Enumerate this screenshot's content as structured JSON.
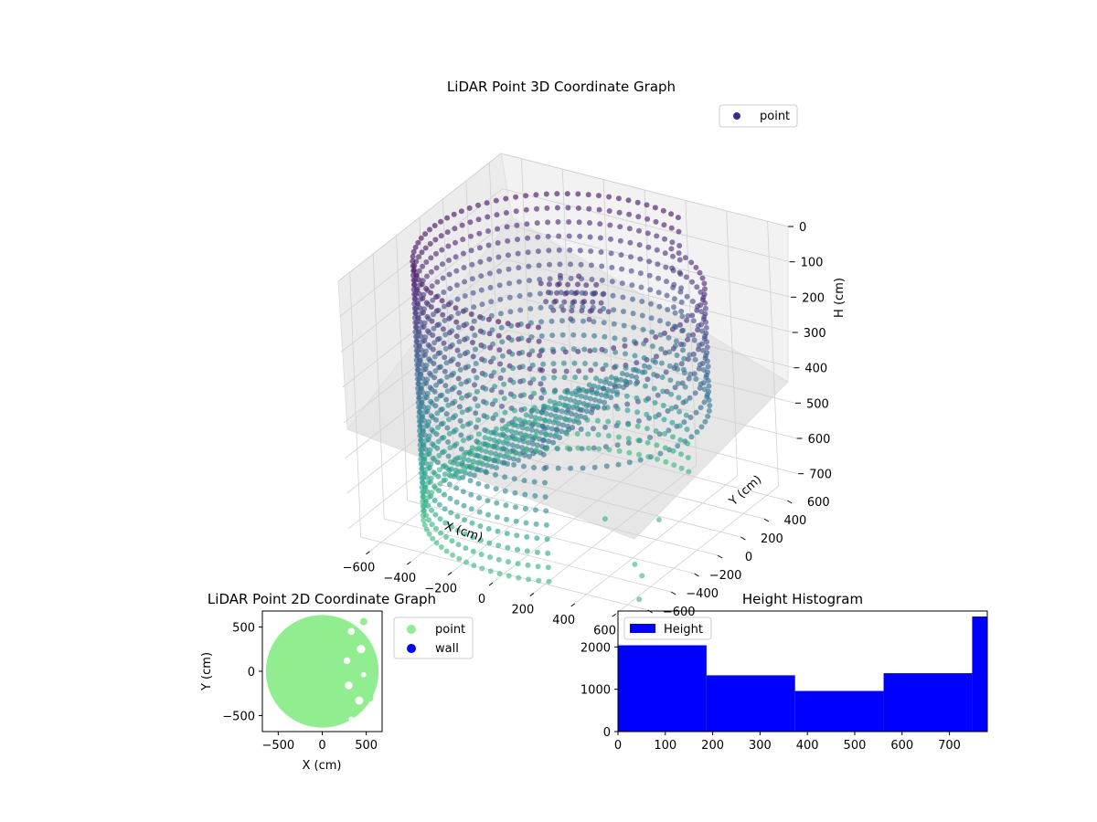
{
  "chart_data": [
    {
      "type": "scatter",
      "title": "LiDAR Point 3D Coordinate Graph",
      "xlabel": "X (cm)",
      "ylabel": "Y (cm)",
      "zlabel": "H (cm)",
      "xlim": [
        -700,
        700
      ],
      "ylim": [
        -700,
        700
      ],
      "zlim": [
        0,
        750
      ],
      "z_inverted": true,
      "x_ticks": [
        "−600",
        "−400",
        "−200",
        "0",
        "200",
        "400",
        "600"
      ],
      "y_ticks": [
        "−600",
        "−400",
        "−200",
        "0",
        "200",
        "400",
        "600"
      ],
      "z_ticks": [
        "0",
        "100",
        "200",
        "300",
        "400",
        "500",
        "600",
        "700"
      ],
      "legend": [
        {
          "label": "point",
          "color": "#3b2f7f"
        }
      ],
      "legend_position": "top-right",
      "colormap": "viridis",
      "grid": true,
      "radius": 640,
      "series": [
        {
          "name": "point"
        }
      ]
    },
    {
      "type": "scatter",
      "title": "LiDAR Point 2D Coordinate Graph",
      "xlabel": "X (cm)",
      "ylabel": "Y (cm)",
      "xlim": [
        -680,
        680
      ],
      "ylim": [
        -680,
        680
      ],
      "x_ticks": [
        "−500",
        "0",
        "500"
      ],
      "y_ticks": [
        "−500",
        "0",
        "500"
      ],
      "legend": [
        {
          "label": "point",
          "color": "#90ee90"
        },
        {
          "label": "wall",
          "color": "#0000ff"
        }
      ],
      "legend_position": "outside-right",
      "series": [
        {
          "name": "point",
          "color": "#90ee90"
        },
        {
          "name": "wall",
          "color": "#0000ff"
        }
      ]
    },
    {
      "type": "bar",
      "title": "Height Histogram",
      "xlim": [
        0,
        780
      ],
      "ylim": [
        0,
        2850
      ],
      "x_ticks": [
        "0",
        "100",
        "200",
        "300",
        "400",
        "500",
        "600",
        "700"
      ],
      "y_ticks": [
        "0",
        "1000",
        "2000"
      ],
      "bins": [
        {
          "start": 0,
          "end": 187,
          "count": 2040
        },
        {
          "start": 187,
          "end": 374,
          "count": 1330
        },
        {
          "start": 374,
          "end": 561,
          "count": 960
        },
        {
          "start": 561,
          "end": 748,
          "count": 1380
        },
        {
          "start": 748,
          "end": 780,
          "count": 2720
        }
      ],
      "color": "#0000ff",
      "legend": [
        {
          "label": "Height",
          "color": "#0000ff"
        }
      ],
      "legend_position": "top-left"
    }
  ]
}
